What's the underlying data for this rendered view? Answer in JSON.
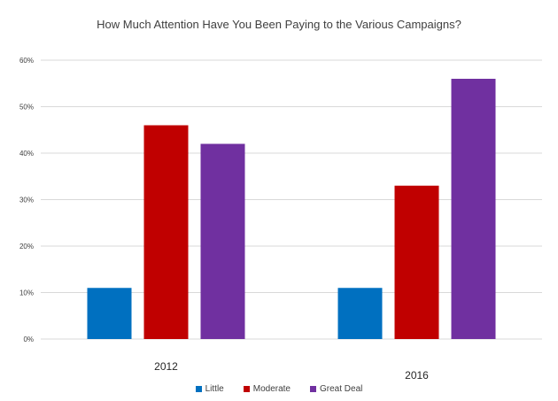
{
  "chart_data": {
    "type": "bar",
    "title": "How Much Attention Have You Been Paying to the Various Campaigns?",
    "xlabel": "",
    "ylabel": "",
    "categories": [
      "2012",
      "2016"
    ],
    "series": [
      {
        "name": "Little",
        "color": "#0070C0",
        "values": [
          11,
          11
        ]
      },
      {
        "name": "Moderate",
        "color": "#C00000",
        "values": [
          46,
          33
        ]
      },
      {
        "name": "Great Deal",
        "color": "#7030A0",
        "values": [
          42,
          56
        ]
      }
    ],
    "ylim": [
      0,
      60
    ],
    "yticks": [
      "0%",
      "10%",
      "20%",
      "30%",
      "40%",
      "50%",
      "60%"
    ],
    "grid": true,
    "legend_position": "bottom"
  }
}
